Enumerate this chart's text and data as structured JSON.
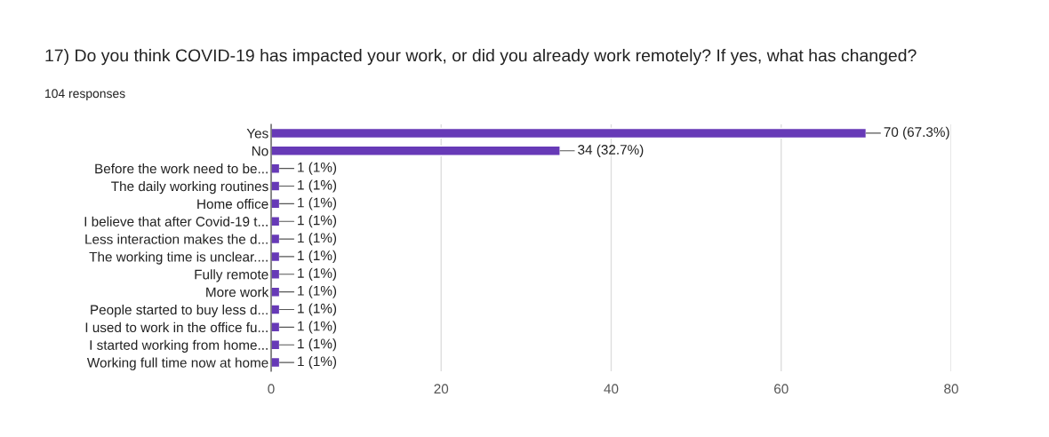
{
  "chart_data": {
    "type": "bar",
    "orientation": "horizontal",
    "title": "17) Do you think COVID-19 has impacted your work, or did you already work remotely? If yes, what has changed?",
    "subtitle": "104 responses",
    "categories": [
      "Yes",
      "No",
      "Before the work need to be...",
      "The daily working routines",
      "Home office",
      "I believe that after Covid-19 t...",
      "Less interaction makes the d...",
      "The working time is unclear....",
      "Fully remote",
      "More work",
      "People started to buy less d...",
      "I used to work in the office fu...",
      "I started working from home...",
      "Working full time now at home"
    ],
    "values": [
      70,
      34,
      1,
      1,
      1,
      1,
      1,
      1,
      1,
      1,
      1,
      1,
      1,
      1
    ],
    "value_labels": [
      "70 (67.3%)",
      "34 (32.7%)",
      "1 (1%)",
      "1 (1%)",
      "1 (1%)",
      "1 (1%)",
      "1 (1%)",
      "1 (1%)",
      "1 (1%)",
      "1 (1%)",
      "1 (1%)",
      "1 (1%)",
      "1 (1%)",
      "1 (1%)"
    ],
    "color": "#673ab7",
    "xlim": [
      0,
      80
    ],
    "xticks": [
      0,
      20,
      40,
      60,
      80
    ],
    "grid": "x"
  }
}
